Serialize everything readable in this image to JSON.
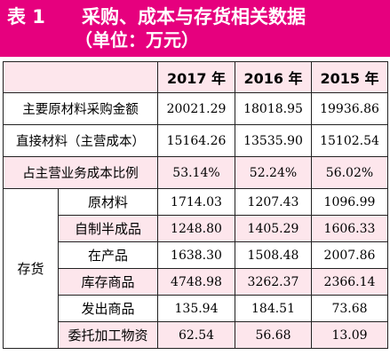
{
  "title": {
    "label": "表 1",
    "text": "采购、成本与存货相关数据",
    "unit": "（单位：万元）"
  },
  "columns": [
    "2017 年",
    "2016 年",
    "2015 年"
  ],
  "rows": [
    {
      "label": "主要原材料采购金额",
      "values": [
        "20021.29",
        "18018.95",
        "19936.86"
      ]
    },
    {
      "label": "直接材料（主营成本）",
      "values": [
        "15164.26",
        "13535.90",
        "15102.54"
      ]
    },
    {
      "label": "占主营业务成本比例",
      "values": [
        "53.14%",
        "52.24%",
        "56.02%"
      ]
    }
  ],
  "inventory": {
    "group_label": "存货",
    "rows": [
      {
        "label": "原材料",
        "values": [
          "1714.03",
          "1207.43",
          "1096.99"
        ]
      },
      {
        "label": "自制半成品",
        "values": [
          "1248.80",
          "1405.29",
          "1606.33"
        ]
      },
      {
        "label": "在产品",
        "values": [
          "1638.30",
          "1508.48",
          "2007.86"
        ]
      },
      {
        "label": "库存商品",
        "values": [
          "4748.98",
          "3262.37",
          "2366.14"
        ]
      },
      {
        "label": "发出商品",
        "values": [
          "135.94",
          "184.51",
          "73.68"
        ]
      },
      {
        "label": "委托加工物资",
        "values": [
          "62.54",
          "56.68",
          "13.09"
        ]
      }
    ]
  },
  "colors": {
    "header_bg": "#e6007e",
    "row_pink": "#fde6ec"
  }
}
